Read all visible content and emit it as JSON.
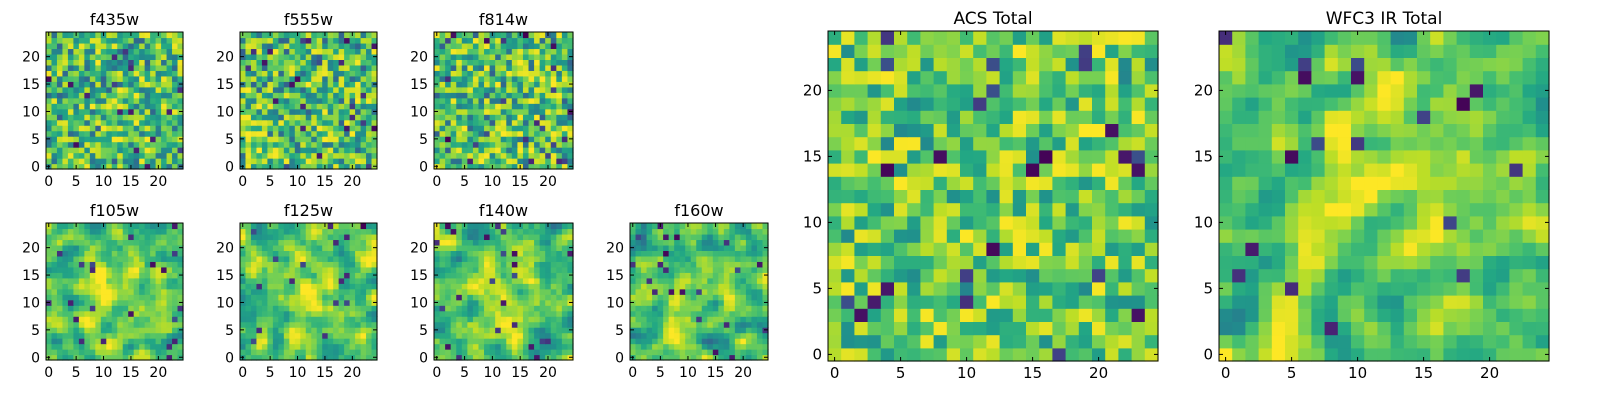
{
  "chart_data": [
    {
      "type": "heatmap",
      "title": "f435w",
      "xlim": [
        0,
        25
      ],
      "ylim": [
        0,
        25
      ],
      "x_ticks": [
        0,
        5,
        10,
        15,
        20
      ],
      "y_ticks": [
        0,
        5,
        10,
        15,
        20
      ],
      "grid": false,
      "origin": "lower",
      "colormap": "viridis",
      "texture": "uniform pixel noise, mostly green/yellow with scattered dark blue pixels",
      "seed": 101,
      "mode": "noise",
      "blob": 0.0
    },
    {
      "type": "heatmap",
      "title": "f555w",
      "xlim": [
        0,
        25
      ],
      "ylim": [
        0,
        25
      ],
      "x_ticks": [
        0,
        5,
        10,
        15,
        20
      ],
      "y_ticks": [
        0,
        5,
        10,
        15,
        20
      ],
      "grid": false,
      "origin": "lower",
      "colormap": "viridis",
      "texture": "uniform pixel noise, mostly green/yellow with scattered dark blue pixels",
      "seed": 202,
      "mode": "noise",
      "blob": 0.0
    },
    {
      "type": "heatmap",
      "title": "f814w",
      "xlim": [
        0,
        25
      ],
      "ylim": [
        0,
        25
      ],
      "x_ticks": [
        0,
        5,
        10,
        15,
        20
      ],
      "y_ticks": [
        0,
        5,
        10,
        15,
        20
      ],
      "grid": false,
      "origin": "lower",
      "colormap": "viridis",
      "texture": "uniform pixel noise, mostly green/yellow with scattered dark blue pixels",
      "seed": 303,
      "mode": "noise",
      "blob": 0.0
    },
    {
      "type": "heatmap",
      "title": "f105w",
      "xlim": [
        0,
        25
      ],
      "ylim": [
        0,
        25
      ],
      "x_ticks": [
        0,
        5,
        10,
        15,
        20
      ],
      "y_ticks": [
        0,
        5,
        10,
        15,
        20
      ],
      "grid": false,
      "origin": "lower",
      "colormap": "viridis",
      "texture": "smoothed noise with brighter yellow region near center",
      "seed": 404,
      "mode": "smooth",
      "blob": 0.35
    },
    {
      "type": "heatmap",
      "title": "f125w",
      "xlim": [
        0,
        25
      ],
      "ylim": [
        0,
        25
      ],
      "x_ticks": [
        0,
        5,
        10,
        15,
        20
      ],
      "y_ticks": [
        0,
        5,
        10,
        15,
        20
      ],
      "grid": false,
      "origin": "lower",
      "colormap": "viridis",
      "texture": "smoothed noise with brighter yellow region near center",
      "seed": 505,
      "mode": "smooth",
      "blob": 0.35
    },
    {
      "type": "heatmap",
      "title": "f140w",
      "xlim": [
        0,
        25
      ],
      "ylim": [
        0,
        25
      ],
      "x_ticks": [
        0,
        5,
        10,
        15,
        20
      ],
      "y_ticks": [
        0,
        5,
        10,
        15,
        20
      ],
      "grid": false,
      "origin": "lower",
      "colormap": "viridis",
      "texture": "smoothed noise with brighter yellow region near center",
      "seed": 606,
      "mode": "smooth",
      "blob": 0.4
    },
    {
      "type": "heatmap",
      "title": "f160w",
      "xlim": [
        0,
        25
      ],
      "ylim": [
        0,
        25
      ],
      "x_ticks": [
        0,
        5,
        10,
        15,
        20
      ],
      "y_ticks": [
        0,
        5,
        10,
        15,
        20
      ],
      "grid": false,
      "origin": "lower",
      "colormap": "viridis",
      "texture": "smoothed noise with brighter yellow region near center",
      "seed": 707,
      "mode": "smooth",
      "blob": 0.4
    },
    {
      "type": "heatmap",
      "title": "ACS Total",
      "xlim": [
        0,
        25
      ],
      "ylim": [
        0,
        25
      ],
      "x_ticks": [
        0,
        5,
        10,
        15,
        20
      ],
      "y_ticks": [
        0,
        5,
        10,
        15,
        20
      ],
      "grid": false,
      "origin": "lower",
      "colormap": "viridis",
      "texture": "pixel noise, mostly green/yellow with a few dark blue pixels",
      "seed": 808,
      "mode": "noise_light",
      "blob": 0.0
    },
    {
      "type": "heatmap",
      "title": "WFC3 IR Total",
      "xlim": [
        0,
        25
      ],
      "ylim": [
        0,
        25
      ],
      "x_ticks": [
        0,
        5,
        10,
        15,
        20
      ],
      "y_ticks": [
        0,
        5,
        10,
        15,
        20
      ],
      "grid": false,
      "origin": "lower",
      "colormap": "viridis",
      "texture": "smoothed noise with bright yellow source around x 12, y 13",
      "seed": 909,
      "mode": "smooth",
      "blob": 0.55
    }
  ]
}
